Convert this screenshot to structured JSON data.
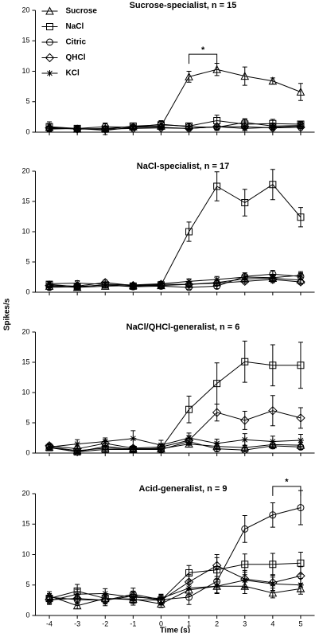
{
  "ylabel": "Spikes/s",
  "chart_data": [
    {
      "type": "line",
      "title": "Sucrose-specialist, n = 15",
      "legend": "upper left",
      "x": [
        -4,
        -3,
        -2,
        -1,
        0,
        1,
        2,
        3,
        4,
        5
      ],
      "xlim": [
        -4.5,
        5.5
      ],
      "xticks": [
        -4,
        -3,
        -2,
        -1,
        0,
        1,
        2,
        3,
        4,
        5
      ],
      "ylim": [
        0,
        20
      ],
      "yticks": [
        0,
        5,
        10,
        15,
        20
      ],
      "annotations": [
        {
          "text": "*",
          "x": [
            1,
            2
          ],
          "y": 12.8
        }
      ],
      "series": [
        {
          "name": "Sucrose",
          "color": "#000000",
          "marker": "triangle",
          "values": [
            0.8,
            0.5,
            0.6,
            0.9,
            1.0,
            9.1,
            10.3,
            9.2,
            8.4,
            6.6
          ],
          "errors": [
            0.5,
            0.3,
            0.4,
            0.4,
            0.5,
            0.9,
            1.0,
            1.5,
            0.5,
            1.4
          ]
        },
        {
          "name": "NaCl",
          "color": "#000000",
          "marker": "square",
          "values": [
            0.9,
            0.6,
            0.5,
            1.0,
            1.2,
            1.0,
            1.9,
            1.3,
            1.4,
            1.3
          ],
          "errors": [
            0.8,
            0.4,
            0.9,
            0.5,
            0.6,
            0.5,
            0.9,
            0.8,
            0.7,
            0.4
          ]
        },
        {
          "name": "Citric",
          "color": "#ffffff",
          "marker": "circle",
          "values": [
            0.5,
            0.6,
            0.9,
            0.8,
            1.3,
            0.9,
            0.8,
            1.6,
            1.0,
            1.1
          ],
          "errors": [
            0.3,
            0.3,
            0.6,
            0.5,
            0.6,
            0.4,
            0.5,
            0.6,
            0.5,
            0.5
          ]
        },
        {
          "name": "QHCl",
          "color": "#a0a0a0",
          "marker": "diamond",
          "values": [
            0.7,
            0.5,
            0.5,
            0.6,
            0.7,
            0.6,
            0.9,
            0.9,
            0.7,
            0.8
          ],
          "errors": [
            0.3,
            0.3,
            0.3,
            0.3,
            0.3,
            0.3,
            0.4,
            0.4,
            0.4,
            0.4
          ]
        },
        {
          "name": "KCl",
          "color": "#000000",
          "marker": "asterisk",
          "values": [
            0.6,
            0.6,
            0.3,
            0.8,
            0.8,
            0.6,
            0.9,
            0.6,
            0.8,
            1.0
          ],
          "errors": [
            0.3,
            0.3,
            0.3,
            0.4,
            0.4,
            0.3,
            0.4,
            0.3,
            0.4,
            0.4
          ]
        }
      ]
    },
    {
      "type": "line",
      "title": "NaCl-specialist, n = 17",
      "x": [
        -4,
        -3,
        -2,
        -1,
        0,
        1,
        2,
        3,
        4,
        5
      ],
      "xlim": [
        -4.5,
        5.5
      ],
      "xticks": [
        -4,
        -3,
        -2,
        -1,
        0,
        1,
        2,
        3,
        4,
        5
      ],
      "ylim": [
        0,
        20
      ],
      "yticks": [
        0,
        5,
        10,
        15,
        20
      ],
      "series": [
        {
          "name": "Sucrose",
          "color": "#000000",
          "marker": "triangle",
          "values": [
            1.0,
            0.8,
            1.0,
            1.1,
            1.1,
            1.3,
            1.6,
            2.2,
            2.3,
            2.0
          ],
          "errors": [
            0.3,
            0.3,
            0.3,
            0.3,
            0.3,
            0.4,
            0.4,
            0.5,
            0.5,
            0.5
          ]
        },
        {
          "name": "NaCl",
          "color": "#000000",
          "marker": "square",
          "values": [
            1.3,
            0.9,
            1.2,
            1.0,
            1.2,
            10.0,
            17.5,
            14.8,
            17.8,
            12.4
          ],
          "errors": [
            0.4,
            0.3,
            0.4,
            0.3,
            0.4,
            1.6,
            2.4,
            2.2,
            2.5,
            1.6
          ]
        },
        {
          "name": "Citric",
          "color": "#ffffff",
          "marker": "circle",
          "values": [
            0.8,
            0.9,
            1.2,
            0.9,
            1.0,
            0.8,
            1.0,
            2.6,
            3.0,
            2.6
          ],
          "errors": [
            0.4,
            0.3,
            0.4,
            0.3,
            0.4,
            0.3,
            0.4,
            0.6,
            0.6,
            0.6
          ]
        },
        {
          "name": "QHCl",
          "color": "#a0a0a0",
          "marker": "diamond",
          "values": [
            1.1,
            1.0,
            1.6,
            1.1,
            1.3,
            1.3,
            1.5,
            1.8,
            2.1,
            1.7
          ],
          "errors": [
            0.3,
            0.3,
            0.4,
            0.3,
            0.3,
            0.3,
            0.4,
            0.4,
            0.5,
            0.4
          ]
        },
        {
          "name": "KCl",
          "color": "#000000",
          "marker": "asterisk",
          "values": [
            1.4,
            1.5,
            1.3,
            1.2,
            1.4,
            1.8,
            2.1,
            2.5,
            2.4,
            2.8
          ],
          "errors": [
            0.4,
            0.4,
            0.3,
            0.3,
            0.4,
            0.4,
            0.5,
            0.5,
            0.5,
            0.6
          ]
        }
      ]
    },
    {
      "type": "line",
      "title": "NaCl/QHCl-generalist, n = 6",
      "x": [
        -4,
        -3,
        -2,
        -1,
        0,
        1,
        2,
        3,
        4,
        5
      ],
      "xlim": [
        -4.5,
        5.5
      ],
      "xticks": [
        -4,
        -3,
        -2,
        -1,
        0,
        1,
        2,
        3,
        4,
        5
      ],
      "ylim": [
        0,
        20
      ],
      "yticks": [
        0,
        5,
        10,
        15,
        20
      ],
      "series": [
        {
          "name": "Sucrose",
          "color": "#000000",
          "marker": "triangle",
          "values": [
            1.0,
            0.4,
            0.8,
            0.7,
            0.7,
            1.5,
            1.1,
            0.9,
            1.4,
            1.3
          ],
          "errors": [
            0.4,
            0.3,
            0.4,
            0.3,
            0.4,
            0.5,
            0.4,
            0.4,
            0.5,
            0.5
          ]
        },
        {
          "name": "NaCl",
          "color": "#000000",
          "marker": "square",
          "values": [
            0.9,
            0.2,
            0.6,
            0.6,
            0.8,
            7.2,
            11.5,
            15.1,
            14.5,
            14.5
          ],
          "errors": [
            0.5,
            0.3,
            0.5,
            0.4,
            0.7,
            2.2,
            3.4,
            3.4,
            3.4,
            3.8
          ]
        },
        {
          "name": "Citric",
          "color": "#ffffff",
          "marker": "circle",
          "values": [
            1.0,
            0.2,
            1.1,
            0.6,
            0.6,
            1.9,
            0.7,
            0.5,
            1.2,
            1.0
          ],
          "errors": [
            0.4,
            0.3,
            0.5,
            0.3,
            0.4,
            0.6,
            0.4,
            0.3,
            0.5,
            0.4
          ]
        },
        {
          "name": "QHCl",
          "color": "#a0a0a0",
          "marker": "diamond",
          "values": [
            1.2,
            0.7,
            1.6,
            0.8,
            1.0,
            2.1,
            6.7,
            5.4,
            7.0,
            5.8
          ],
          "errors": [
            0.4,
            0.4,
            0.6,
            0.4,
            0.5,
            0.8,
            1.4,
            1.5,
            2.5,
            1.7
          ]
        },
        {
          "name": "KCl",
          "color": "#000000",
          "marker": "asterisk",
          "values": [
            1.0,
            1.5,
            1.9,
            2.4,
            1.3,
            2.5,
            1.6,
            2.2,
            1.9,
            2.1
          ],
          "errors": [
            0.5,
            0.7,
            0.6,
            1.3,
            0.8,
            0.8,
            0.7,
            1.0,
            0.9,
            1.0
          ]
        }
      ]
    },
    {
      "type": "line",
      "title": "Acid-generalist, n = 9",
      "xlabel": "Time (s)",
      "x": [
        -4,
        -3,
        -2,
        -1,
        0,
        1,
        2,
        3,
        4,
        5
      ],
      "xlim": [
        -4.5,
        5.5
      ],
      "xticks": [
        -4,
        -3,
        -2,
        -1,
        0,
        1,
        2,
        3,
        4,
        5
      ],
      "ylim": [
        0,
        20
      ],
      "yticks": [
        0,
        5,
        10,
        15,
        20
      ],
      "annotations": [
        {
          "text": "*",
          "x": [
            4,
            5
          ],
          "y": 21.2
        }
      ],
      "series": [
        {
          "name": "Sucrose",
          "color": "#000000",
          "marker": "triangle",
          "values": [
            3.2,
            1.6,
            2.8,
            2.7,
            1.9,
            4.2,
            4.8,
            4.8,
            3.7,
            4.4
          ],
          "errors": [
            0.7,
            0.5,
            0.7,
            0.7,
            0.6,
            1.0,
            1.1,
            1.2,
            0.8,
            0.9
          ]
        },
        {
          "name": "NaCl",
          "color": "#000000",
          "marker": "square",
          "values": [
            2.8,
            4.0,
            2.8,
            2.6,
            2.5,
            7.0,
            7.5,
            8.4,
            8.4,
            8.6
          ],
          "errors": [
            0.8,
            1.1,
            0.7,
            0.9,
            0.8,
            1.2,
            2.0,
            1.7,
            1.8,
            1.8
          ]
        },
        {
          "name": "Citric",
          "color": "#ffffff",
          "marker": "circle",
          "values": [
            3.0,
            2.6,
            2.5,
            3.5,
            2.6,
            3.0,
            5.6,
            14.2,
            16.5,
            17.7
          ],
          "errors": [
            0.6,
            0.7,
            0.9,
            1.0,
            0.8,
            1.2,
            2.0,
            2.2,
            2.0,
            2.8
          ]
        },
        {
          "name": "QHCl",
          "color": "#a0a0a0",
          "marker": "diamond",
          "values": [
            2.6,
            2.8,
            2.5,
            3.2,
            2.5,
            5.5,
            8.2,
            6.0,
            5.4,
            6.5
          ],
          "errors": [
            0.6,
            0.7,
            0.6,
            0.8,
            0.6,
            1.2,
            1.8,
            1.4,
            1.3,
            1.5
          ]
        },
        {
          "name": "KCl",
          "color": "#000000",
          "marker": "asterisk",
          "values": [
            2.4,
            3.5,
            3.6,
            3.0,
            2.8,
            4.5,
            4.8,
            5.8,
            5.2,
            5.0
          ],
          "errors": [
            0.6,
            0.8,
            0.8,
            0.8,
            0.7,
            1.0,
            1.1,
            1.3,
            1.1,
            1.1
          ]
        }
      ]
    }
  ]
}
